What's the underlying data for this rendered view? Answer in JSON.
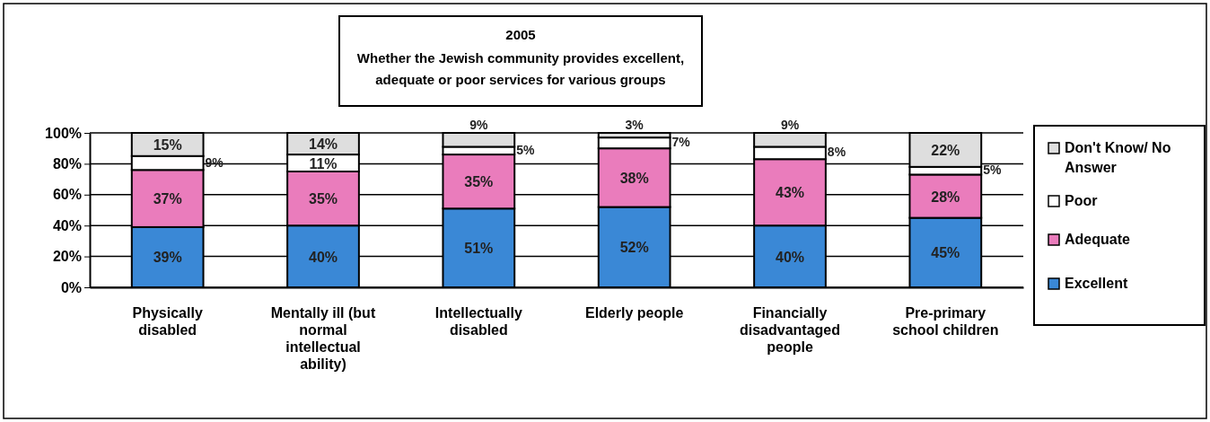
{
  "chart_data": {
    "type": "bar",
    "stacked": true,
    "title": "2005",
    "subtitle": "Whether the Jewish community provides excellent, adequate or poor services for various groups",
    "categories": [
      "Physically disabled",
      "Mentally ill (but normal intellectual ability)",
      "Intellectually disabled",
      "Elderly people",
      "Financially disadvantaged people",
      "Pre-primary school children"
    ],
    "series": [
      {
        "name": "Excellent",
        "color": "#3a88d6",
        "values": [
          39,
          40,
          51,
          52,
          40,
          45
        ],
        "value_labels": [
          "39%",
          "40%",
          "51%",
          "52%",
          "40%",
          "45%"
        ]
      },
      {
        "name": "Adequate",
        "color": "#ea7cbc",
        "values": [
          37,
          35,
          35,
          38,
          43,
          28
        ],
        "value_labels": [
          "37%",
          "35%",
          "35%",
          "38%",
          "43%",
          "28%"
        ]
      },
      {
        "name": "Poor",
        "color": "#ffffff",
        "values": [
          9,
          11,
          5,
          7,
          8,
          5
        ],
        "value_labels": [
          "9%",
          "11%",
          "5%",
          "7%",
          "8%",
          "5%"
        ]
      },
      {
        "name": "Don't Know/ No Answer",
        "color": "#dedede",
        "values": [
          15,
          14,
          9,
          3,
          9,
          22
        ],
        "value_labels": [
          "15%",
          "14%",
          "9%",
          "3%",
          "9%",
          "22%"
        ]
      }
    ],
    "ylim": [
      0,
      100
    ],
    "yticks": [
      {
        "value": 0,
        "label": "0%"
      },
      {
        "value": 20,
        "label": "20%"
      },
      {
        "value": 40,
        "label": "40%"
      },
      {
        "value": 60,
        "label": "60%"
      },
      {
        "value": 80,
        "label": "80%"
      },
      {
        "value": 100,
        "label": "100%"
      }
    ],
    "grid": "y",
    "legend": "right"
  }
}
